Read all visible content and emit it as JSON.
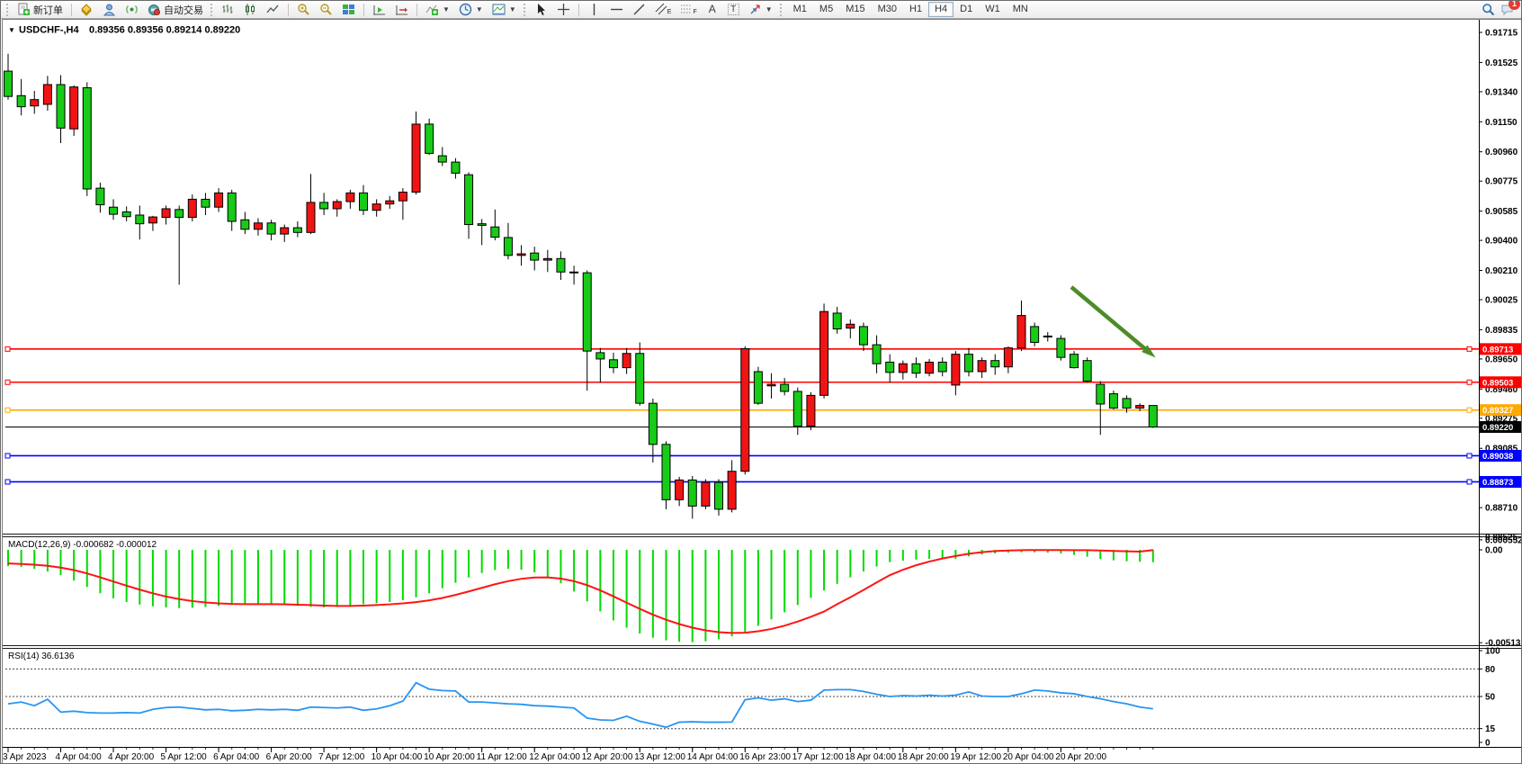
{
  "toolbar": {
    "new_order_label": "新订单",
    "autotrading_label": "自动交易",
    "timeframes": [
      "M1",
      "M5",
      "M15",
      "M30",
      "H1",
      "H4",
      "D1",
      "W1",
      "MN"
    ],
    "active_timeframe": "H4",
    "notification_badge": "1",
    "glyph_text": "A",
    "glyph_textlabel": "T",
    "glyph_channel": "E",
    "glyph_fibo": "F"
  },
  "chart_header": {
    "collapse_icon": "▼",
    "symbol": "USDCHF-,H4",
    "ohlc": "0.89356 0.89356 0.89214 0.89220"
  },
  "chart_data": {
    "type": "candlestick",
    "symbol": "USDCHF-",
    "timeframe": "H4",
    "note": "Chinese color convention: red = bullish(close>=open), green = bearish",
    "up_color": "#F01414",
    "down_color": "#17CB17",
    "current_price": {
      "value": 0.8922,
      "label": "0.89220",
      "color": "#000000"
    },
    "price_axis_labels": [
      "0.91715",
      "0.91525",
      "0.91340",
      "0.91150",
      "0.90960",
      "0.90775",
      "0.90585",
      "0.90400",
      "0.90210",
      "0.90025",
      "0.89835",
      "0.89650",
      "0.89460",
      "0.89275",
      "0.89085",
      "0.88710",
      "0.88525"
    ],
    "hlines": [
      {
        "price": 0.89713,
        "label": "0.89713",
        "color": "#FE0000"
      },
      {
        "price": 0.89503,
        "label": "0.89503",
        "color": "#FE0000"
      },
      {
        "price": 0.89327,
        "label": "0.89327",
        "color": "#FFA800"
      },
      {
        "price": 0.89038,
        "label": "0.89038",
        "color": "#0000FE"
      },
      {
        "price": 0.88873,
        "label": "0.88873",
        "color": "#0000FE"
      }
    ],
    "arrow": {
      "color": "#4E8C28",
      "from": [
        1190,
        318
      ],
      "to": [
        1276,
        390
      ]
    },
    "time_axis": {
      "candles_per_label": 4,
      "labels": [
        "3 Apr 2023",
        "4 Apr 04:00",
        "4 Apr 20:00",
        "5 Apr 12:00",
        "6 Apr 04:00",
        "6 Apr 20:00",
        "7 Apr 12:00",
        "10 Apr 04:00",
        "10 Apr 20:00",
        "11 Apr 12:00",
        "12 Apr 04:00",
        "12 Apr 20:00",
        "13 Apr 12:00",
        "14 Apr 04:00",
        "16 Apr 23:00",
        "17 Apr 12:00",
        "18 Apr 04:00",
        "18 Apr 20:00",
        "19 Apr 12:00",
        "20 Apr 04:00",
        "20 Apr 20:00"
      ]
    },
    "candles": [
      [
        0.9147,
        0.9158,
        0.9129,
        0.9131
      ],
      [
        0.91315,
        0.9142,
        0.9119,
        0.91245
      ],
      [
        0.9125,
        0.91345,
        0.912,
        0.9129
      ],
      [
        0.9126,
        0.9144,
        0.9122,
        0.91385
      ],
      [
        0.91385,
        0.91445,
        0.91015,
        0.9111
      ],
      [
        0.91105,
        0.9138,
        0.9106,
        0.9137
      ],
      [
        0.91365,
        0.914,
        0.9068,
        0.90725
      ],
      [
        0.9073,
        0.90765,
        0.90575,
        0.90625
      ],
      [
        0.9061,
        0.9066,
        0.9053,
        0.90565
      ],
      [
        0.9058,
        0.90615,
        0.9052,
        0.9055
      ],
      [
        0.9056,
        0.9062,
        0.90405,
        0.90505
      ],
      [
        0.9051,
        0.90555,
        0.9046,
        0.90548
      ],
      [
        0.90545,
        0.9062,
        0.905,
        0.906
      ],
      [
        0.90595,
        0.9062,
        0.9012,
        0.90545
      ],
      [
        0.90545,
        0.9069,
        0.9052,
        0.9066
      ],
      [
        0.9066,
        0.907,
        0.9056,
        0.9061
      ],
      [
        0.9061,
        0.9073,
        0.9058,
        0.907
      ],
      [
        0.907,
        0.9072,
        0.9046,
        0.9052
      ],
      [
        0.9053,
        0.9058,
        0.9044,
        0.9047
      ],
      [
        0.9047,
        0.9054,
        0.9043,
        0.9051
      ],
      [
        0.9051,
        0.9053,
        0.904,
        0.9044
      ],
      [
        0.9044,
        0.905,
        0.9039,
        0.9048
      ],
      [
        0.9048,
        0.9052,
        0.9042,
        0.9045
      ],
      [
        0.9045,
        0.9082,
        0.9044,
        0.9064
      ],
      [
        0.9064,
        0.907,
        0.9056,
        0.906
      ],
      [
        0.906,
        0.9066,
        0.9055,
        0.90645
      ],
      [
        0.90645,
        0.9072,
        0.906,
        0.907
      ],
      [
        0.907,
        0.9075,
        0.9056,
        0.9059
      ],
      [
        0.9059,
        0.9066,
        0.9055,
        0.9063
      ],
      [
        0.9063,
        0.9068,
        0.906,
        0.9065
      ],
      [
        0.9065,
        0.9073,
        0.9053,
        0.90705
      ],
      [
        0.90705,
        0.91215,
        0.9069,
        0.91135
      ],
      [
        0.91135,
        0.9117,
        0.9094,
        0.9095
      ],
      [
        0.90935,
        0.9099,
        0.9087,
        0.90895
      ],
      [
        0.90895,
        0.9092,
        0.9079,
        0.90825
      ],
      [
        0.90815,
        0.9083,
        0.9041,
        0.905
      ],
      [
        0.90505,
        0.90535,
        0.9037,
        0.90495
      ],
      [
        0.90485,
        0.90595,
        0.904,
        0.9042
      ],
      [
        0.90418,
        0.9051,
        0.9028,
        0.90305
      ],
      [
        0.90305,
        0.9037,
        0.9024,
        0.90315
      ],
      [
        0.9032,
        0.9036,
        0.9021,
        0.90275
      ],
      [
        0.90275,
        0.9034,
        0.902,
        0.90285
      ],
      [
        0.90285,
        0.9033,
        0.9015,
        0.902
      ],
      [
        0.902,
        0.9024,
        0.9012,
        0.90195
      ],
      [
        0.90195,
        0.9021,
        0.8945,
        0.897
      ],
      [
        0.8969,
        0.8972,
        0.895,
        0.8965
      ],
      [
        0.89645,
        0.8969,
        0.8956,
        0.89595
      ],
      [
        0.89595,
        0.8972,
        0.89555,
        0.89685
      ],
      [
        0.89685,
        0.89755,
        0.89355,
        0.8937
      ],
      [
        0.8937,
        0.894,
        0.88995,
        0.8911
      ],
      [
        0.8911,
        0.8913,
        0.887,
        0.8876
      ],
      [
        0.8876,
        0.88905,
        0.8872,
        0.88885
      ],
      [
        0.88885,
        0.8891,
        0.8864,
        0.8872
      ],
      [
        0.8872,
        0.8889,
        0.887,
        0.8887
      ],
      [
        0.8887,
        0.8889,
        0.8866,
        0.887
      ],
      [
        0.887,
        0.8901,
        0.8868,
        0.8894
      ],
      [
        0.8894,
        0.8973,
        0.8892,
        0.89715
      ],
      [
        0.8957,
        0.896,
        0.8936,
        0.8937
      ],
      [
        0.8948,
        0.8956,
        0.894,
        0.8949
      ],
      [
        0.8949,
        0.8953,
        0.8942,
        0.89445
      ],
      [
        0.89445,
        0.8947,
        0.8917,
        0.89225
      ],
      [
        0.89225,
        0.8944,
        0.892,
        0.8942
      ],
      [
        0.8942,
        0.9,
        0.894,
        0.8995
      ],
      [
        0.8994,
        0.8998,
        0.8981,
        0.8984
      ],
      [
        0.89845,
        0.899,
        0.8978,
        0.8987
      ],
      [
        0.89855,
        0.8988,
        0.897,
        0.8974
      ],
      [
        0.8974,
        0.898,
        0.8956,
        0.8962
      ],
      [
        0.8963,
        0.8968,
        0.895,
        0.89565
      ],
      [
        0.89565,
        0.8964,
        0.8952,
        0.8962
      ],
      [
        0.8962,
        0.8966,
        0.8953,
        0.8956
      ],
      [
        0.8956,
        0.8965,
        0.8954,
        0.8963
      ],
      [
        0.8963,
        0.8966,
        0.8954,
        0.8957
      ],
      [
        0.89485,
        0.897,
        0.8942,
        0.8968
      ],
      [
        0.8968,
        0.8972,
        0.8954,
        0.8957
      ],
      [
        0.8957,
        0.8966,
        0.8953,
        0.8964
      ],
      [
        0.8964,
        0.8968,
        0.8955,
        0.896
      ],
      [
        0.896,
        0.8973,
        0.8956,
        0.8972
      ],
      [
        0.8972,
        0.9002,
        0.897,
        0.89925
      ],
      [
        0.89855,
        0.8988,
        0.8973,
        0.89755
      ],
      [
        0.8979,
        0.8982,
        0.8976,
        0.89795
      ],
      [
        0.8978,
        0.898,
        0.8964,
        0.8966
      ],
      [
        0.8968,
        0.897,
        0.8959,
        0.89595
      ],
      [
        0.8964,
        0.8966,
        0.895,
        0.8951
      ],
      [
        0.8949,
        0.8951,
        0.8917,
        0.89365
      ],
      [
        0.8943,
        0.8945,
        0.8933,
        0.8934
      ],
      [
        0.894,
        0.8942,
        0.8931,
        0.8934
      ],
      [
        0.8934,
        0.8937,
        0.8932,
        0.89356
      ],
      [
        0.89356,
        0.89356,
        0.89214,
        0.8922
      ]
    ],
    "macd": {
      "title": "MACD(12,26,9)",
      "main_value": "-0.000682",
      "signal_value": "-0.000012",
      "hist_color": "#00DC00",
      "signal_color": "#FF1414",
      "axis_labels": [
        {
          "text": "0.000552",
          "v": 0.000552
        },
        {
          "text": "0.00",
          "v": 0
        },
        {
          "text": "-0.00513",
          "v": -0.00513
        }
      ],
      "values": [
        -0.0009,
        -0.00095,
        -0.00105,
        -0.0012,
        -0.0014,
        -0.0017,
        -0.00205,
        -0.0024,
        -0.00268,
        -0.00288,
        -0.00302,
        -0.00312,
        -0.00318,
        -0.00322,
        -0.0032,
        -0.00316,
        -0.0031,
        -0.00305,
        -0.003,
        -0.00298,
        -0.003,
        -0.00305,
        -0.0031,
        -0.00315,
        -0.00318,
        -0.00316,
        -0.0031,
        -0.003,
        -0.00295,
        -0.00288,
        -0.00278,
        -0.00262,
        -0.0024,
        -0.00212,
        -0.00182,
        -0.00152,
        -0.00128,
        -0.00112,
        -0.00105,
        -0.0011,
        -0.00125,
        -0.0015,
        -0.00185,
        -0.0023,
        -0.00285,
        -0.0034,
        -0.0039,
        -0.0043,
        -0.00462,
        -0.00486,
        -0.005,
        -0.00508,
        -0.0051,
        -0.00505,
        -0.00494,
        -0.00478,
        -0.00452,
        -0.0042,
        -0.00384,
        -0.00345,
        -0.00305,
        -0.00265,
        -0.00225,
        -0.00188,
        -0.00152,
        -0.0012,
        -0.00092,
        -0.00068,
        -0.0006,
        -0.00054,
        -0.0005,
        -0.00052,
        -0.0005,
        -0.00036,
        -0.00026,
        -0.0002,
        -0.00016,
        -0.00014,
        -0.00014,
        -0.00016,
        -0.0002,
        -0.00028,
        -0.00038,
        -0.0005,
        -0.00058,
        -0.00063,
        -0.00066,
        -0.000682
      ],
      "signal": [
        -0.00075,
        -0.00078,
        -0.00082,
        -0.00088,
        -0.00098,
        -0.00112,
        -0.0013,
        -0.00152,
        -0.00175,
        -0.00198,
        -0.0022,
        -0.0024,
        -0.00258,
        -0.00272,
        -0.00283,
        -0.00291,
        -0.00296,
        -0.00299,
        -0.003,
        -0.003,
        -0.003,
        -0.00301,
        -0.00303,
        -0.00305,
        -0.00308,
        -0.0031,
        -0.0031,
        -0.00308,
        -0.00305,
        -0.00301,
        -0.00296,
        -0.00289,
        -0.00279,
        -0.00266,
        -0.00249,
        -0.0023,
        -0.0021,
        -0.0019,
        -0.00173,
        -0.0016,
        -0.00153,
        -0.00152,
        -0.00159,
        -0.00173,
        -0.00195,
        -0.00224,
        -0.00257,
        -0.00292,
        -0.00326,
        -0.00358,
        -0.00386,
        -0.0041,
        -0.0043,
        -0.00445,
        -0.00455,
        -0.00459,
        -0.00458,
        -0.0045,
        -0.00437,
        -0.00419,
        -0.00396,
        -0.0037,
        -0.00341,
        -0.003,
        -0.00262,
        -0.00222,
        -0.0018,
        -0.0014,
        -0.0011,
        -0.00085,
        -0.00065,
        -0.00048,
        -0.00034,
        -0.00022,
        -0.00013,
        -7e-05,
        -4e-05,
        -2e-05,
        -1e-05,
        -1e-05,
        -1e-05,
        -2e-05,
        -2e-05,
        -4e-05,
        -6e-05,
        -8e-05,
        -0.0001,
        -1.2e-05
      ]
    },
    "rsi": {
      "title": "RSI(14)",
      "value": "36.6136",
      "color": "#2895F1",
      "levels": [
        80,
        50,
        15
      ],
      "axis_labels": [
        {
          "text": "100",
          "v": 100
        },
        {
          "text": "80",
          "v": 80
        },
        {
          "text": "50",
          "v": 50
        },
        {
          "text": "15",
          "v": 15
        },
        {
          "text": "0",
          "v": 0
        }
      ],
      "values": [
        42,
        44,
        40,
        47,
        33,
        34,
        32.5,
        32,
        32,
        32.5,
        32,
        36,
        38,
        38.5,
        37,
        35.5,
        36,
        34.5,
        35,
        36,
        35.5,
        36,
        35,
        38.5,
        38,
        37.5,
        38.5,
        35,
        36.5,
        40,
        45,
        65,
        58,
        56.5,
        56,
        44,
        44,
        43,
        42,
        41.5,
        40,
        39.5,
        38.5,
        37.5,
        26.5,
        24.5,
        24,
        28.5,
        23,
        20,
        16.5,
        22,
        22.5,
        22,
        22,
        22.2,
        46.5,
        48.5,
        46,
        47.5,
        44.5,
        46,
        57,
        57.5,
        57.5,
        55.5,
        52.5,
        50,
        51,
        50.5,
        51.5,
        50.5,
        51.5,
        55,
        50.5,
        50,
        50,
        53,
        57,
        56,
        54,
        53,
        50,
        47.5,
        44.5,
        42,
        38.5,
        36.6136
      ]
    }
  }
}
